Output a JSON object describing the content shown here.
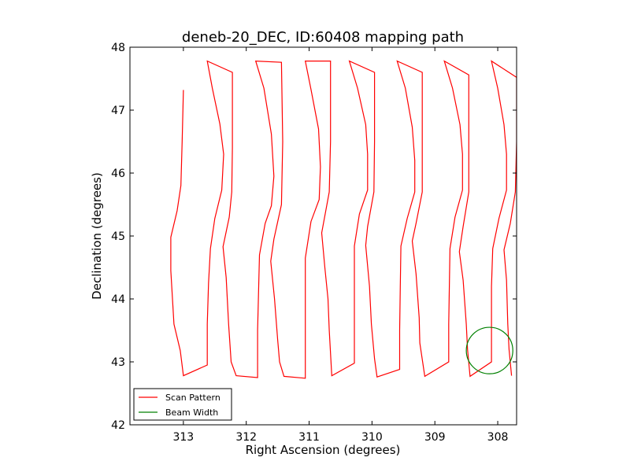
{
  "chart_data": {
    "type": "line",
    "title": "deneb-20_DEC, ID:60408 mapping path",
    "xlabel": "Right Ascension (degrees)",
    "ylabel": "Declination (degrees)",
    "xlim": [
      313.85,
      307.7
    ],
    "ylim": [
      42,
      48
    ],
    "x_ticks": [
      313,
      312,
      311,
      310,
      309,
      308
    ],
    "y_ticks": [
      42,
      43,
      44,
      45,
      46,
      47,
      48
    ],
    "x_tick_labels": [
      "313",
      "312",
      "311",
      "310",
      "309",
      "308"
    ],
    "y_tick_labels": [
      "42",
      "43",
      "44",
      "45",
      "46",
      "47",
      "48"
    ],
    "grid": false,
    "legend": {
      "placement": "lower-left",
      "entries": [
        {
          "label": "Scan Pattern",
          "color": "#ff0000"
        },
        {
          "label": "Beam Width",
          "color": "#008000"
        }
      ]
    },
    "series": [
      {
        "name": "Scan Pattern",
        "color": "#ff0000",
        "points": [
          [
            313.0,
            47.32
          ],
          [
            313.02,
            46.5
          ],
          [
            313.04,
            45.8
          ],
          [
            313.1,
            45.4
          ],
          [
            313.2,
            44.98
          ],
          [
            313.2,
            44.45
          ],
          [
            313.15,
            43.6
          ],
          [
            313.05,
            43.18
          ],
          [
            313.0,
            42.78
          ],
          [
            312.62,
            42.95
          ],
          [
            312.62,
            43.6
          ],
          [
            312.6,
            44.25
          ],
          [
            312.57,
            44.8
          ],
          [
            312.5,
            45.28
          ],
          [
            312.39,
            45.73
          ],
          [
            312.36,
            46.3
          ],
          [
            312.42,
            46.78
          ],
          [
            312.54,
            47.35
          ],
          [
            312.62,
            47.78
          ],
          [
            312.22,
            47.6
          ],
          [
            312.22,
            46.4
          ],
          [
            312.23,
            45.7
          ],
          [
            312.27,
            45.3
          ],
          [
            312.37,
            44.83
          ],
          [
            312.32,
            44.34
          ],
          [
            312.28,
            43.6
          ],
          [
            312.24,
            43.0
          ],
          [
            312.16,
            42.78
          ],
          [
            311.82,
            42.75
          ],
          [
            311.82,
            43.5
          ],
          [
            311.8,
            44.3
          ],
          [
            311.79,
            44.7
          ],
          [
            311.7,
            45.2
          ],
          [
            311.6,
            45.48
          ],
          [
            311.56,
            45.95
          ],
          [
            311.6,
            46.62
          ],
          [
            311.72,
            47.35
          ],
          [
            311.85,
            47.78
          ],
          [
            311.44,
            47.76
          ],
          [
            311.42,
            46.5
          ],
          [
            311.44,
            45.5
          ],
          [
            311.56,
            44.95
          ],
          [
            311.61,
            44.6
          ],
          [
            311.55,
            44.0
          ],
          [
            311.5,
            43.35
          ],
          [
            311.47,
            43.0
          ],
          [
            311.4,
            42.77
          ],
          [
            311.06,
            42.74
          ],
          [
            311.06,
            43.5
          ],
          [
            311.06,
            44.2
          ],
          [
            311.06,
            44.65
          ],
          [
            310.97,
            45.23
          ],
          [
            310.84,
            45.58
          ],
          [
            310.82,
            46.1
          ],
          [
            310.85,
            46.7
          ],
          [
            310.97,
            47.33
          ],
          [
            311.06,
            47.78
          ],
          [
            310.66,
            47.78
          ],
          [
            310.66,
            46.5
          ],
          [
            310.68,
            45.7
          ],
          [
            310.8,
            45.05
          ],
          [
            310.75,
            44.5
          ],
          [
            310.7,
            44.0
          ],
          [
            310.68,
            43.5
          ],
          [
            310.64,
            42.78
          ],
          [
            310.28,
            42.98
          ],
          [
            310.28,
            43.7
          ],
          [
            310.28,
            44.4
          ],
          [
            310.28,
            44.84
          ],
          [
            310.2,
            45.35
          ],
          [
            310.07,
            45.73
          ],
          [
            310.07,
            46.3
          ],
          [
            310.1,
            46.77
          ],
          [
            310.23,
            47.35
          ],
          [
            310.36,
            47.78
          ],
          [
            309.96,
            47.6
          ],
          [
            309.96,
            46.5
          ],
          [
            309.97,
            45.7
          ],
          [
            310.07,
            45.15
          ],
          [
            310.1,
            44.85
          ],
          [
            310.04,
            44.2
          ],
          [
            310.01,
            43.6
          ],
          [
            309.96,
            43.05
          ],
          [
            309.92,
            42.76
          ],
          [
            309.56,
            42.88
          ],
          [
            309.56,
            43.5
          ],
          [
            309.55,
            44.2
          ],
          [
            309.54,
            44.84
          ],
          [
            309.44,
            45.28
          ],
          [
            309.32,
            45.7
          ],
          [
            309.32,
            46.2
          ],
          [
            309.36,
            46.73
          ],
          [
            309.47,
            47.35
          ],
          [
            309.6,
            47.78
          ],
          [
            309.2,
            47.6
          ],
          [
            309.2,
            46.5
          ],
          [
            309.2,
            45.7
          ],
          [
            309.3,
            45.2
          ],
          [
            309.36,
            44.92
          ],
          [
            309.3,
            44.4
          ],
          [
            309.25,
            43.7
          ],
          [
            309.24,
            43.3
          ],
          [
            309.16,
            42.77
          ],
          [
            308.78,
            43.0
          ],
          [
            308.78,
            43.6
          ],
          [
            308.77,
            44.2
          ],
          [
            308.76,
            44.8
          ],
          [
            308.68,
            45.3
          ],
          [
            308.56,
            45.73
          ],
          [
            308.56,
            46.3
          ],
          [
            308.6,
            46.77
          ],
          [
            308.72,
            47.35
          ],
          [
            308.85,
            47.78
          ],
          [
            308.46,
            47.56
          ],
          [
            308.46,
            46.5
          ],
          [
            308.46,
            45.7
          ],
          [
            308.55,
            45.15
          ],
          [
            308.61,
            44.75
          ],
          [
            308.55,
            44.3
          ],
          [
            308.5,
            43.6
          ],
          [
            308.48,
            43.2
          ],
          [
            308.44,
            42.77
          ],
          [
            308.1,
            43.0
          ],
          [
            308.1,
            43.5
          ],
          [
            308.1,
            44.2
          ],
          [
            308.08,
            44.8
          ],
          [
            307.98,
            45.28
          ],
          [
            307.86,
            45.73
          ],
          [
            307.86,
            46.3
          ],
          [
            307.9,
            46.77
          ],
          [
            308.0,
            47.35
          ],
          [
            308.1,
            47.78
          ],
          [
            307.7,
            47.52
          ],
          [
            307.7,
            46.5
          ],
          [
            307.72,
            45.7
          ],
          [
            307.8,
            45.2
          ],
          [
            307.9,
            44.78
          ],
          [
            307.86,
            44.3
          ],
          [
            307.84,
            43.6
          ],
          [
            307.82,
            43.2
          ],
          [
            307.78,
            42.78
          ]
        ]
      },
      {
        "name": "Beam Width",
        "color": "#008000",
        "shape": "circle",
        "center": [
          308.13,
          43.18
        ],
        "radius": 0.37
      }
    ]
  }
}
